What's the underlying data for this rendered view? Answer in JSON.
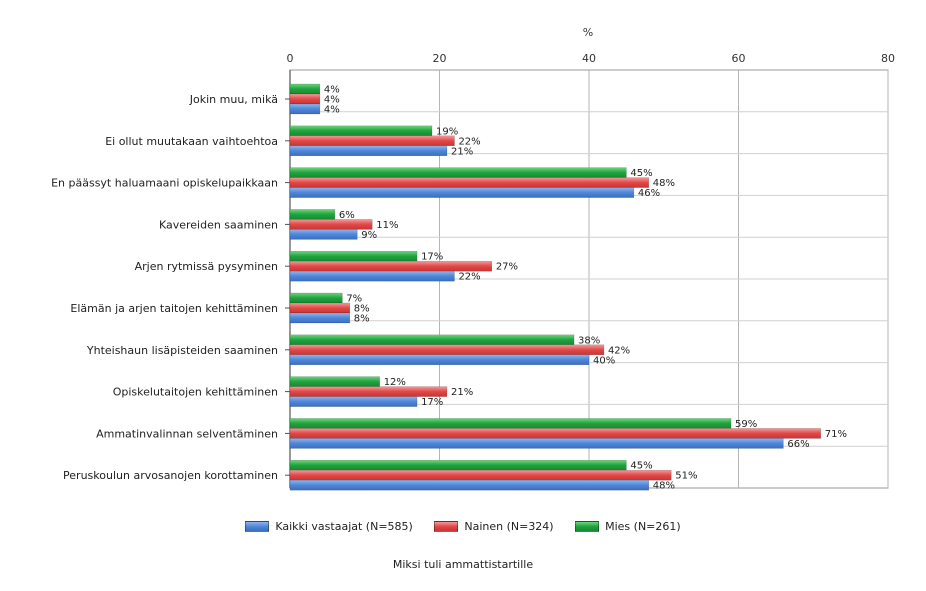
{
  "chart_data": {
    "type": "bar",
    "orientation": "horizontal",
    "title": "",
    "top_axis_label": "%",
    "xlabel": "Miksi tuli ammattistartille",
    "xlim": [
      0,
      80
    ],
    "xticks": [
      0,
      20,
      40,
      60,
      80
    ],
    "grid": true,
    "legend_position": "bottom",
    "categories": [
      "Jokin muu, mikä",
      "Ei ollut muutakaan vaihtoehtoa",
      "En päässyt haluamaani opiskelupaikkaan",
      "Kavereiden saaminen",
      "Arjen rytmissä pysyminen",
      "Elämän ja arjen taitojen kehittäminen",
      "Yhteishaun lisäpisteiden saaminen",
      "Opiskelutaitojen kehittäminen",
      "Ammatinvalinnan selventäminen",
      "Peruskoulun arvosanojen korottaminen"
    ],
    "series": [
      {
        "name": "Kaikki vastaajat (N=585)",
        "color": "#4f86d8",
        "values": [
          4,
          21,
          46,
          9,
          22,
          8,
          40,
          17,
          66,
          48
        ],
        "labels": [
          "4%",
          "21%",
          "46%",
          "9%",
          "22%",
          "8%",
          "40%",
          "17%",
          "66%",
          "48%"
        ]
      },
      {
        "name": "Nainen (N=324)",
        "color": "#e24848",
        "values": [
          4,
          22,
          48,
          11,
          27,
          8,
          42,
          21,
          71,
          51
        ],
        "labels": [
          "4%",
          "22%",
          "48%",
          "11%",
          "27%",
          "8%",
          "42%",
          "21%",
          "71%",
          "51%"
        ]
      },
      {
        "name": "Mies (N=261)",
        "color": "#1fa43d",
        "values": [
          4,
          19,
          45,
          6,
          17,
          7,
          38,
          12,
          59,
          45
        ],
        "labels": [
          "4%",
          "19%",
          "45%",
          "6%",
          "17%",
          "7%",
          "38%",
          "12%",
          "59%",
          "45%"
        ]
      }
    ]
  }
}
